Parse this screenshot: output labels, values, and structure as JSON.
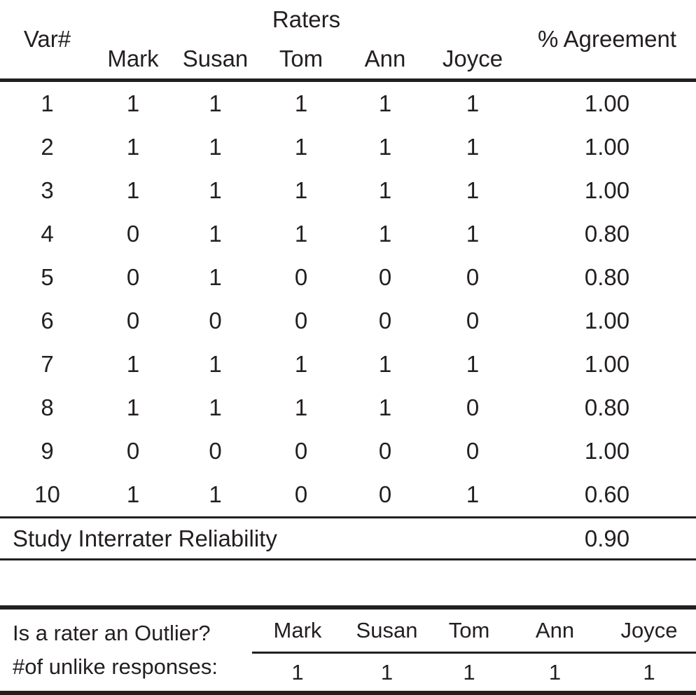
{
  "table": {
    "raters_header": "Raters",
    "var_header": "Var#",
    "agreement_header": "% Agreement",
    "raters": [
      "Mark",
      "Susan",
      "Tom",
      "Ann",
      "Joyce"
    ],
    "rows": [
      {
        "var": "1",
        "ratings": [
          "1",
          "1",
          "1",
          "1",
          "1"
        ],
        "agreement": "1.00"
      },
      {
        "var": "2",
        "ratings": [
          "1",
          "1",
          "1",
          "1",
          "1"
        ],
        "agreement": "1.00"
      },
      {
        "var": "3",
        "ratings": [
          "1",
          "1",
          "1",
          "1",
          "1"
        ],
        "agreement": "1.00"
      },
      {
        "var": "4",
        "ratings": [
          "0",
          "1",
          "1",
          "1",
          "1"
        ],
        "agreement": "0.80"
      },
      {
        "var": "5",
        "ratings": [
          "0",
          "1",
          "0",
          "0",
          "0"
        ],
        "agreement": "0.80"
      },
      {
        "var": "6",
        "ratings": [
          "0",
          "0",
          "0",
          "0",
          "0"
        ],
        "agreement": "1.00"
      },
      {
        "var": "7",
        "ratings": [
          "1",
          "1",
          "1",
          "1",
          "1"
        ],
        "agreement": "1.00"
      },
      {
        "var": "8",
        "ratings": [
          "1",
          "1",
          "1",
          "1",
          "0"
        ],
        "agreement": "0.80"
      },
      {
        "var": "9",
        "ratings": [
          "0",
          "0",
          "0",
          "0",
          "0"
        ],
        "agreement": "1.00"
      },
      {
        "var": "10",
        "ratings": [
          "1",
          "1",
          "0",
          "0",
          "1"
        ],
        "agreement": "0.60"
      }
    ],
    "summary": {
      "label": "Study Interrater Reliability",
      "value": "0.90"
    }
  },
  "outlier_section": {
    "question": "Is a rater an Outlier?",
    "metric_label": "#of unlike responses:",
    "raters": [
      "Mark",
      "Susan",
      "Tom",
      "Ann",
      "Joyce"
    ],
    "values": [
      "1",
      "1",
      "1",
      "1",
      "1"
    ]
  },
  "colors": {
    "text": "#231f20",
    "background": "#ffffff"
  }
}
